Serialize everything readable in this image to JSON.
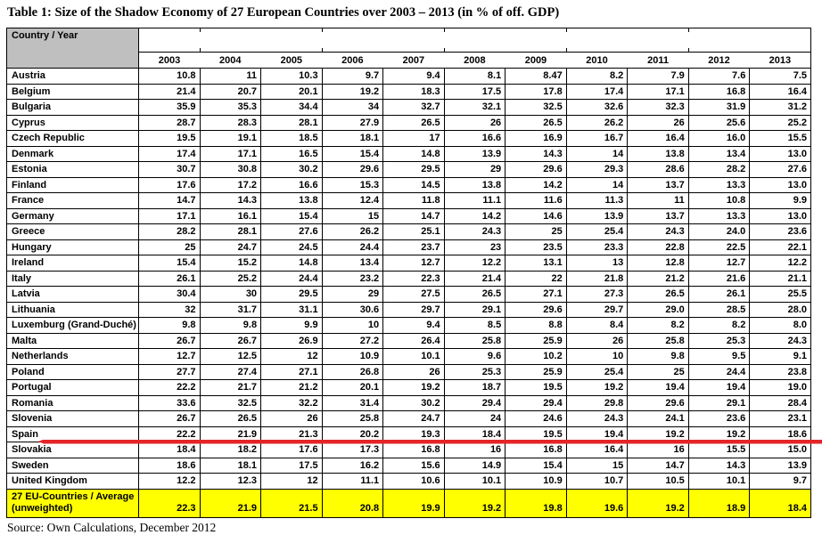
{
  "title": "Table 1: Size of the Shadow Economy of 27 European Countries over 2003 – 2013 (in % of off. GDP)",
  "source": "Source: Own Calculations, December 2012",
  "colors": {
    "header_gray": "#BFBFBF",
    "highlight_yellow": "#FFFF00",
    "annotation_red": "#E42528",
    "border_black": "#000000"
  },
  "table": {
    "corner_label": "Country / Year",
    "years": [
      "2003",
      "2004",
      "2005",
      "2006",
      "2007",
      "2008",
      "2009",
      "2010",
      "2011",
      "2012",
      "2013"
    ],
    "rows": [
      {
        "country": "Austria",
        "values": [
          "10.8",
          "11",
          "10.3",
          "9.7",
          "9.4",
          "8.1",
          "8.47",
          "8.2",
          "7.9",
          "7.6",
          "7.5"
        ]
      },
      {
        "country": "Belgium",
        "values": [
          "21.4",
          "20.7",
          "20.1",
          "19.2",
          "18.3",
          "17.5",
          "17.8",
          "17.4",
          "17.1",
          "16.8",
          "16.4"
        ]
      },
      {
        "country": "Bulgaria",
        "values": [
          "35.9",
          "35.3",
          "34.4",
          "34",
          "32.7",
          "32.1",
          "32.5",
          "32.6",
          "32.3",
          "31.9",
          "31.2"
        ]
      },
      {
        "country": "Cyprus",
        "values": [
          "28.7",
          "28.3",
          "28.1",
          "27.9",
          "26.5",
          "26",
          "26.5",
          "26.2",
          "26",
          "25.6",
          "25.2"
        ]
      },
      {
        "country": "Czech Republic",
        "values": [
          "19.5",
          "19.1",
          "18.5",
          "18.1",
          "17",
          "16.6",
          "16.9",
          "16.7",
          "16.4",
          "16.0",
          "15.5"
        ]
      },
      {
        "country": "Denmark",
        "values": [
          "17.4",
          "17.1",
          "16.5",
          "15.4",
          "14.8",
          "13.9",
          "14.3",
          "14",
          "13.8",
          "13.4",
          "13.0"
        ]
      },
      {
        "country": "Estonia",
        "values": [
          "30.7",
          "30.8",
          "30.2",
          "29.6",
          "29.5",
          "29",
          "29.6",
          "29.3",
          "28.6",
          "28.2",
          "27.6"
        ]
      },
      {
        "country": "Finland",
        "values": [
          "17.6",
          "17.2",
          "16.6",
          "15.3",
          "14.5",
          "13.8",
          "14.2",
          "14",
          "13.7",
          "13.3",
          "13.0"
        ]
      },
      {
        "country": "France",
        "values": [
          "14.7",
          "14.3",
          "13.8",
          "12.4",
          "11.8",
          "11.1",
          "11.6",
          "11.3",
          "11",
          "10.8",
          "9.9"
        ]
      },
      {
        "country": "Germany",
        "values": [
          "17.1",
          "16.1",
          "15.4",
          "15",
          "14.7",
          "14.2",
          "14.6",
          "13.9",
          "13.7",
          "13.3",
          "13.0"
        ]
      },
      {
        "country": "Greece",
        "values": [
          "28.2",
          "28.1",
          "27.6",
          "26.2",
          "25.1",
          "24.3",
          "25",
          "25.4",
          "24.3",
          "24.0",
          "23.6"
        ]
      },
      {
        "country": "Hungary",
        "values": [
          "25",
          "24.7",
          "24.5",
          "24.4",
          "23.7",
          "23",
          "23.5",
          "23.3",
          "22.8",
          "22.5",
          "22.1"
        ]
      },
      {
        "country": "Ireland",
        "values": [
          "15.4",
          "15.2",
          "14.8",
          "13.4",
          "12.7",
          "12.2",
          "13.1",
          "13",
          "12.8",
          "12.7",
          "12.2"
        ]
      },
      {
        "country": "Italy",
        "values": [
          "26.1",
          "25.2",
          "24.4",
          "23.2",
          "22.3",
          "21.4",
          "22",
          "21.8",
          "21.2",
          "21.6",
          "21.1"
        ]
      },
      {
        "country": "Latvia",
        "values": [
          "30.4",
          "30",
          "29.5",
          "29",
          "27.5",
          "26.5",
          "27.1",
          "27.3",
          "26.5",
          "26.1",
          "25.5"
        ]
      },
      {
        "country": "Lithuania",
        "values": [
          "32",
          "31.7",
          "31.1",
          "30.6",
          "29.7",
          "29.1",
          "29.6",
          "29.7",
          "29.0",
          "28.5",
          "28.0"
        ]
      },
      {
        "country": "Luxemburg (Grand-Duché)",
        "values": [
          "9.8",
          "9.8",
          "9.9",
          "10",
          "9.4",
          "8.5",
          "8.8",
          "8.4",
          "8.2",
          "8.2",
          "8.0"
        ]
      },
      {
        "country": "Malta",
        "values": [
          "26.7",
          "26.7",
          "26.9",
          "27.2",
          "26.4",
          "25.8",
          "25.9",
          "26",
          "25.8",
          "25.3",
          "24.3"
        ]
      },
      {
        "country": "Netherlands",
        "values": [
          "12.7",
          "12.5",
          "12",
          "10.9",
          "10.1",
          "9.6",
          "10.2",
          "10",
          "9.8",
          "9.5",
          "9.1"
        ]
      },
      {
        "country": "Poland",
        "values": [
          "27.7",
          "27.4",
          "27.1",
          "26.8",
          "26",
          "25.3",
          "25.9",
          "25.4",
          "25",
          "24.4",
          "23.8"
        ]
      },
      {
        "country": "Portugal",
        "values": [
          "22.2",
          "21.7",
          "21.2",
          "20.1",
          "19.2",
          "18.7",
          "19.5",
          "19.2",
          "19.4",
          "19.4",
          "19.0"
        ]
      },
      {
        "country": "Romania",
        "values": [
          "33.6",
          "32.5",
          "32.2",
          "31.4",
          "30.2",
          "29.4",
          "29.4",
          "29.8",
          "29.6",
          "29.1",
          "28.4"
        ]
      },
      {
        "country": "Slovenia",
        "values": [
          "26.7",
          "26.5",
          "26",
          "25.8",
          "24.7",
          "24",
          "24.6",
          "24.3",
          "24.1",
          "23.6",
          "23.1"
        ]
      },
      {
        "country": "Spain",
        "values": [
          "22.2",
          "21.9",
          "21.3",
          "20.2",
          "19.3",
          "18.4",
          "19.5",
          "19.4",
          "19.2",
          "19.2",
          "18.6"
        ]
      },
      {
        "country": "Slovakia",
        "values": [
          "18.4",
          "18.2",
          "17.6",
          "17.3",
          "16.8",
          "16",
          "16.8",
          "16.4",
          "16",
          "15.5",
          "15.0"
        ]
      },
      {
        "country": "Sweden",
        "values": [
          "18.6",
          "18.1",
          "17.5",
          "16.2",
          "15.6",
          "14.9",
          "15.4",
          "15",
          "14.7",
          "14.3",
          "13.9"
        ]
      },
      {
        "country": "United Kingdom",
        "values": [
          "12.2",
          "12.3",
          "12",
          "11.1",
          "10.6",
          "10.1",
          "10.9",
          "10.7",
          "10.5",
          "10.1",
          "9.7"
        ]
      }
    ],
    "summary_row": {
      "label_line1": "27 EU-Countries / Average",
      "label_line2": "(unweighted)",
      "values": [
        "22.3",
        "21.9",
        "21.5",
        "20.8",
        "19.9",
        "19.2",
        "19.8",
        "19.6",
        "19.2",
        "18.9",
        "18.4"
      ]
    },
    "annotation": {
      "type": "red-line",
      "after_country": "Spain"
    }
  }
}
